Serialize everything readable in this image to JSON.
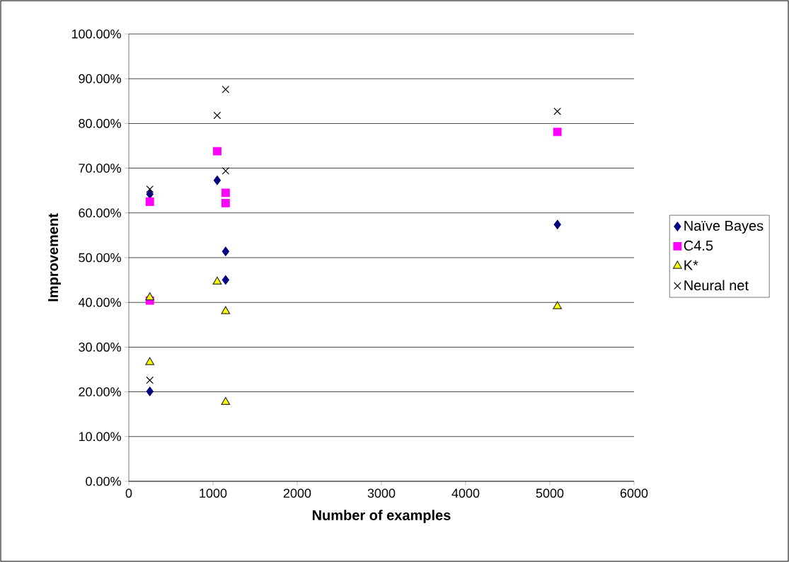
{
  "chart_data": {
    "type": "scatter",
    "xlabel": "Number of examples",
    "ylabel": "Improvement",
    "xlim": [
      0,
      6000
    ],
    "xticks": [
      0,
      1000,
      2000,
      3000,
      4000,
      5000,
      6000
    ],
    "ylim": [
      0,
      100
    ],
    "yticks": [
      {
        "value": 0,
        "label": "0.00%"
      },
      {
        "value": 10,
        "label": "10.00%"
      },
      {
        "value": 20,
        "label": "20.00%"
      },
      {
        "value": 30,
        "label": "30.00%"
      },
      {
        "value": 40,
        "label": "40.00%"
      },
      {
        "value": 50,
        "label": "50.00%"
      },
      {
        "value": 60,
        "label": "60.00%"
      },
      {
        "value": 70,
        "label": "70.00%"
      },
      {
        "value": 80,
        "label": "80.00%"
      },
      {
        "value": 90,
        "label": "90.00%"
      },
      {
        "value": 100,
        "label": "100.00%"
      }
    ],
    "grid": "y",
    "legend": "right",
    "series": [
      {
        "name": "Naïve Bayes",
        "color": "#000080",
        "marker": "diamond",
        "x": [
          250,
          250,
          1050,
          1150,
          1150,
          5090
        ],
        "values": [
          64.2,
          20.1,
          67.3,
          51.4,
          45.0,
          57.4
        ]
      },
      {
        "name": "C4.5",
        "color": "#ff00ff",
        "marker": "square",
        "x": [
          250,
          250,
          1050,
          1150,
          1150,
          5090
        ],
        "values": [
          62.5,
          40.4,
          73.8,
          64.5,
          62.2,
          78.1
        ]
      },
      {
        "name": "K*",
        "color": "#ffff00",
        "marker": "triangle",
        "x": [
          250,
          250,
          1050,
          1150,
          1150,
          5090
        ],
        "values": [
          41.1,
          26.6,
          44.6,
          38.0,
          17.7,
          39.1
        ]
      },
      {
        "name": "Neural net",
        "color": "#000000",
        "marker": "cross",
        "x": [
          250,
          250,
          1050,
          1150,
          1150,
          5090
        ],
        "values": [
          65.3,
          22.6,
          81.8,
          87.6,
          69.4,
          82.7
        ]
      }
    ]
  }
}
